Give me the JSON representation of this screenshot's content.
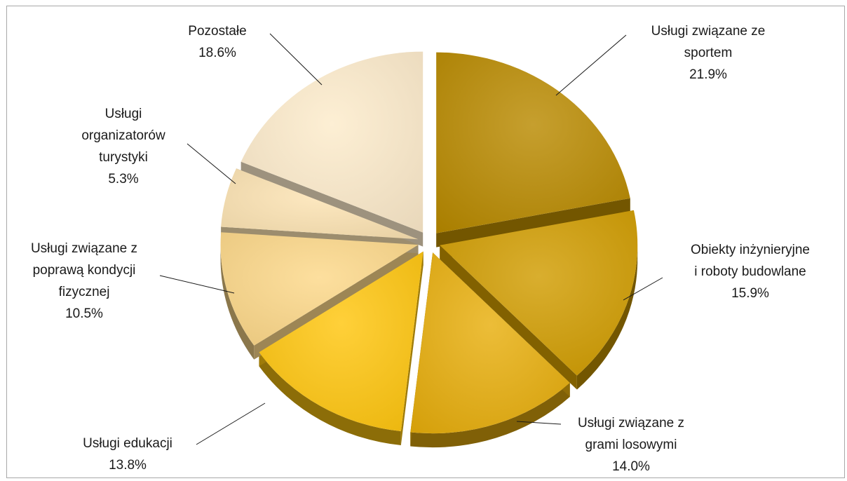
{
  "chart_data": {
    "type": "pie",
    "title": "",
    "unit": "%",
    "slices": [
      {
        "name": "Usługi związane ze sportem",
        "label_lines": [
          "Usługi związane ze",
          "sportem"
        ],
        "value": 21.9,
        "value_label": "21.9%",
        "color": "#B98A00"
      },
      {
        "name": "Obiekty inżynieryjne i roboty budowlane",
        "label_lines": [
          "Obiekty inżynieryjne",
          "i roboty budowlane"
        ],
        "value": 15.9,
        "value_label": "15.9%",
        "color": "#D19C00"
      },
      {
        "name": "Usługi związane z grami losowymi",
        "label_lines": [
          "Usługi związane z",
          "grami losowymi"
        ],
        "value": 14.0,
        "value_label": "14.0%",
        "color": "#E8AE0C"
      },
      {
        "name": "Usługi edukacji",
        "label_lines": [
          "Usługi edukacji"
        ],
        "value": 13.8,
        "value_label": "13.8%",
        "color": "#FFC60E"
      },
      {
        "name": "Usługi związane z poprawą kondycji fizycznej",
        "label_lines": [
          "Usługi  związane z",
          "poprawą kondycji",
          "fizycznej"
        ],
        "value": 10.5,
        "value_label": "10.5%",
        "color": "#FDD889"
      },
      {
        "name": "Usługi organizatorów turystyki",
        "label_lines": [
          "Usługi",
          "organizatorów",
          "turystyki"
        ],
        "value": 5.3,
        "value_label": "5.3%",
        "color": "#FCE3B2"
      },
      {
        "name": "Pozostałe",
        "label_lines": [
          "Pozostałe"
        ],
        "value": 18.6,
        "value_label": "18.6%",
        "color": "#FDEBCB"
      }
    ],
    "legend": "none",
    "style": "3d-exploded"
  }
}
